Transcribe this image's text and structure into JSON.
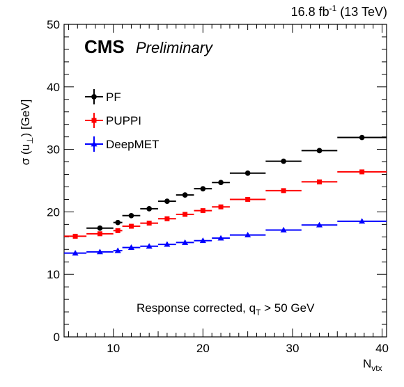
{
  "header": {
    "cms_label": "CMS",
    "preliminary_label": "Preliminary",
    "lumi_value": "16.8 fb",
    "lumi_exponent": "-1",
    "lumi_energy": " (13 TeV)"
  },
  "annotation": {
    "text_main": "Response corrected, q",
    "text_sub": "T",
    "text_tail": " > 50 GeV"
  },
  "axes": {
    "x_title_main": "N",
    "x_title_sub": "vtx",
    "y_title_sigma": "σ",
    "y_title_paren": " (u",
    "y_title_sub": "⊥",
    "y_title_tail": ") [GeV]"
  },
  "colors": {
    "PF": "#000000",
    "PUPPI": "#ff0000",
    "DeepMET": "#0000ff"
  },
  "chart_data": {
    "type": "scatter",
    "xlim": [
      4.5,
      40.5
    ],
    "ylim": [
      0,
      50
    ],
    "x_ticks": [
      10,
      20,
      30,
      40
    ],
    "y_ticks": [
      0,
      10,
      20,
      30,
      40,
      50
    ],
    "grid": false,
    "legend_position": "top-left",
    "series": [
      {
        "name": "PF",
        "marker": "circle",
        "bins": [
          [
            7,
            10,
            17.4
          ],
          [
            10,
            11,
            18.3
          ],
          [
            11,
            13,
            19.4
          ],
          [
            13,
            15,
            20.5
          ],
          [
            15,
            17,
            21.7
          ],
          [
            17,
            19,
            22.7
          ],
          [
            19,
            21,
            23.7
          ],
          [
            21,
            23,
            24.7
          ],
          [
            23,
            27,
            26.2
          ],
          [
            27,
            31,
            28.1
          ],
          [
            31,
            35,
            29.8
          ],
          [
            35,
            40.5,
            31.9
          ]
        ]
      },
      {
        "name": "PUPPI",
        "marker": "square",
        "bins": [
          [
            4.5,
            7,
            16.1
          ],
          [
            7,
            10,
            16.5
          ],
          [
            10,
            11,
            17.0
          ],
          [
            11,
            13,
            17.7
          ],
          [
            13,
            15,
            18.2
          ],
          [
            15,
            17,
            18.9
          ],
          [
            17,
            19,
            19.6
          ],
          [
            19,
            21,
            20.2
          ],
          [
            21,
            23,
            20.8
          ],
          [
            23,
            27,
            22.0
          ],
          [
            27,
            31,
            23.4
          ],
          [
            31,
            35,
            24.8
          ],
          [
            35,
            40.5,
            26.4
          ]
        ]
      },
      {
        "name": "DeepMET",
        "marker": "triangle",
        "bins": [
          [
            4.5,
            7,
            13.4
          ],
          [
            7,
            10,
            13.6
          ],
          [
            10,
            11,
            13.8
          ],
          [
            11,
            13,
            14.3
          ],
          [
            13,
            15,
            14.5
          ],
          [
            15,
            17,
            14.8
          ],
          [
            17,
            19,
            15.1
          ],
          [
            19,
            21,
            15.4
          ],
          [
            21,
            23,
            15.8
          ],
          [
            23,
            27,
            16.3
          ],
          [
            27,
            31,
            17.1
          ],
          [
            31,
            35,
            17.9
          ],
          [
            35,
            40.5,
            18.5
          ]
        ]
      }
    ]
  }
}
